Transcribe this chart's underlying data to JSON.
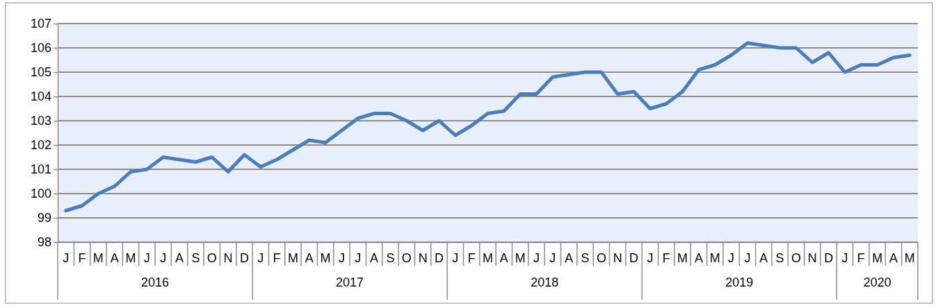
{
  "chart_data": {
    "type": "line",
    "categories": [
      "J",
      "F",
      "M",
      "A",
      "M",
      "J",
      "J",
      "A",
      "S",
      "O",
      "N",
      "D",
      "J",
      "F",
      "M",
      "A",
      "M",
      "J",
      "J",
      "A",
      "S",
      "O",
      "N",
      "D",
      "J",
      "F",
      "M",
      "A",
      "M",
      "J",
      "J",
      "A",
      "S",
      "O",
      "N",
      "D",
      "J",
      "F",
      "M",
      "A",
      "M",
      "J",
      "J",
      "A",
      "S",
      "O",
      "N",
      "D",
      "J",
      "F",
      "M",
      "A",
      "M"
    ],
    "series": [
      {
        "color": "#4a7ebb",
        "values": [
          99.3,
          99.5,
          100.0,
          100.3,
          100.9,
          101.0,
          101.5,
          101.4,
          101.3,
          101.5,
          100.9,
          101.6,
          101.1,
          101.4,
          101.8,
          102.2,
          102.1,
          102.6,
          103.1,
          103.3,
          103.3,
          103.0,
          102.6,
          103.0,
          102.4,
          102.8,
          103.3,
          103.4,
          104.1,
          104.1,
          104.8,
          104.9,
          105.0,
          105.0,
          104.1,
          104.2,
          103.5,
          103.7,
          104.2,
          105.1,
          105.3,
          105.7,
          106.2,
          106.1,
          106.0,
          106.0,
          105.4,
          105.8,
          105.0,
          105.3,
          105.3,
          105.6,
          105.7
        ]
      }
    ],
    "annotations": [
      "2016",
      "2017",
      "2018",
      "2019",
      "2020"
    ],
    "ylim": [
      98,
      107
    ],
    "yticks": [
      98,
      99,
      100,
      101,
      102,
      103,
      104,
      105,
      106,
      107
    ],
    "grid": "y",
    "marker": "none",
    "line_style": "solid"
  }
}
